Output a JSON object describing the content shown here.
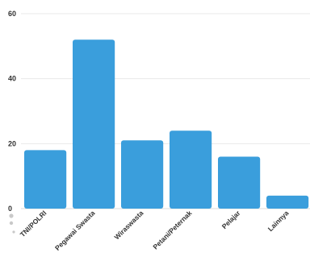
{
  "chart_data": {
    "type": "bar",
    "title": "",
    "xlabel": "",
    "ylabel": "",
    "categories": [
      "TNI/POLRI",
      "Pegawai Swasta",
      "Wiraswasta",
      "Petani/Peternak",
      "Pelajar",
      "Lainnya"
    ],
    "values": [
      18,
      52,
      21,
      24,
      16,
      4
    ],
    "ylim": [
      0,
      60
    ],
    "yticks": [
      0,
      20,
      40,
      60
    ],
    "grid": true,
    "color": "#3a9edc"
  }
}
